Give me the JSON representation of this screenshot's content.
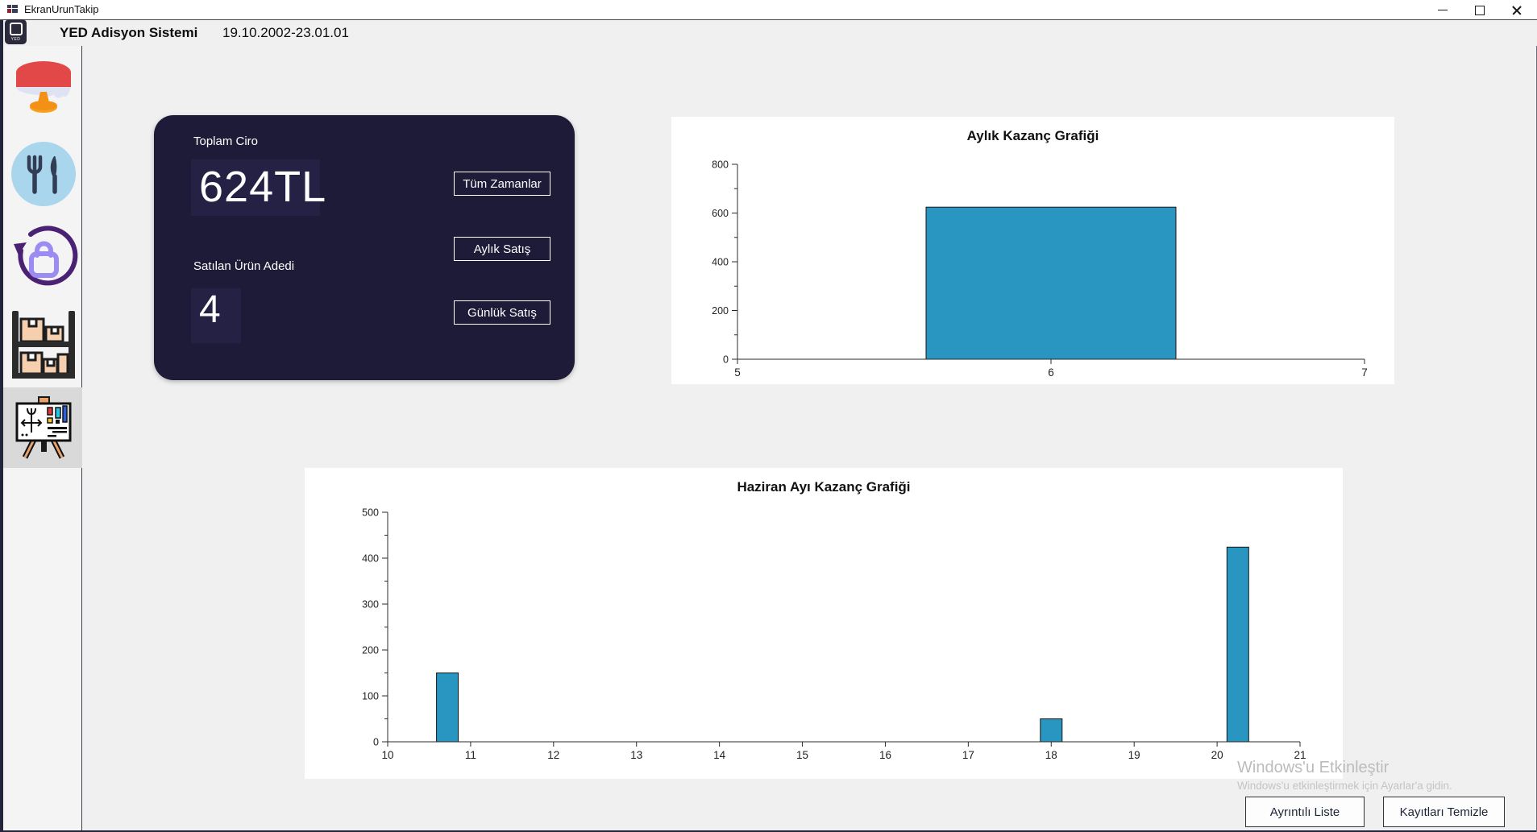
{
  "window": {
    "title": "EkranUrunTakip"
  },
  "header": {
    "title": "YED Adisyon Sistemi",
    "date": "19.10.2002-23.01.01",
    "logo_text": "YED"
  },
  "sidebar": {
    "icons": [
      "table-icon",
      "cutlery-icon",
      "bag-refresh-icon",
      "shelf-boxes-icon",
      "chart-board-icon"
    ],
    "selected": "chart-board-icon"
  },
  "stats_card": {
    "total_label": "Toplam Ciro",
    "total_value": "624TL",
    "count_label": "Satılan Ürün Adedi",
    "count_value": "4",
    "buttons": [
      "Tüm Zamanlar",
      "Aylık Satış",
      "Günlük Satış"
    ]
  },
  "chart_data": [
    {
      "type": "bar",
      "title": "Aylık Kazanç Grafiği",
      "xlabel": "",
      "ylabel": "",
      "xlim": [
        5,
        7
      ],
      "ylim": [
        0,
        800
      ],
      "x_ticks": [
        5,
        6,
        7
      ],
      "y_ticks": [
        0,
        200,
        400,
        600,
        800
      ],
      "y_minor_step": 100,
      "bars": [
        {
          "x": 6,
          "value": 624
        }
      ],
      "bar_color": "#2996c1",
      "grid": false,
      "legend": false
    },
    {
      "type": "bar",
      "title": "Haziran Ayı Kazanç Grafiği",
      "xlabel": "",
      "ylabel": "",
      "xlim": [
        10,
        21
      ],
      "ylim": [
        0,
        500
      ],
      "x_ticks": [
        10,
        11,
        12,
        13,
        14,
        15,
        16,
        17,
        18,
        19,
        20,
        21
      ],
      "y_ticks": [
        0,
        100,
        200,
        300,
        400,
        500
      ],
      "y_minor_step": 50,
      "bars": [
        {
          "x": 10.72,
          "value": 150
        },
        {
          "x": 18,
          "value": 50
        },
        {
          "x": 20.25,
          "value": 424
        }
      ],
      "bar_color": "#2996c1",
      "grid": false,
      "legend": false
    }
  ],
  "watermark": {
    "line1": "Windows'u Etkinleştir",
    "line2": "Windows'u etkinleştirmek için Ayarlar'a gidin."
  },
  "footer": {
    "buttons": [
      "Ayrıntılı Liste",
      "Kayıtları Temizle"
    ]
  },
  "colors": {
    "card_bg": "#1e1b38",
    "bar_fill": "#2996c1",
    "bar_border": "#141414",
    "sidebar_bg": "#f4f4f4",
    "page_bg": "#f0f0f0"
  }
}
